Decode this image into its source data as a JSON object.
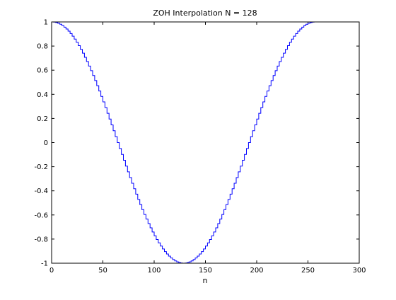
{
  "chart_data": {
    "type": "line",
    "title": "ZOH Interpolation N = 128",
    "xlabel": "n",
    "ylabel": "",
    "xlim": [
      0,
      300
    ],
    "ylim": [
      -1,
      1
    ],
    "xticks": [
      0,
      50,
      100,
      150,
      200,
      250,
      300
    ],
    "yticks": [
      -1,
      -0.8,
      -0.6,
      -0.4,
      -0.2,
      0,
      0.2,
      0.4,
      0.6,
      0.8,
      1
    ],
    "xtick_labels": [
      "0",
      "50",
      "100",
      "150",
      "200",
      "250",
      "300"
    ],
    "ytick_labels": [
      "-1",
      "-0.8",
      "-0.6",
      "-0.4",
      "-0.2",
      "0",
      "0.2",
      "0.4",
      "0.6",
      "0.8",
      "1"
    ],
    "grid": false,
    "line_color": "#0000ff",
    "series": [
      {
        "style": "stairs",
        "x": [
          0,
          2,
          4,
          6,
          8,
          10,
          12,
          14,
          16,
          18,
          20,
          22,
          24,
          26,
          28,
          30,
          32,
          34,
          36,
          38,
          40,
          42,
          44,
          46,
          48,
          50,
          52,
          54,
          56,
          58,
          60,
          62,
          64,
          66,
          68,
          70,
          72,
          74,
          76,
          78,
          80,
          82,
          84,
          86,
          88,
          90,
          92,
          94,
          96,
          98,
          100,
          102,
          104,
          106,
          108,
          110,
          112,
          114,
          116,
          118,
          120,
          122,
          124,
          126,
          128,
          130,
          132,
          134,
          136,
          138,
          140,
          142,
          144,
          146,
          148,
          150,
          152,
          154,
          156,
          158,
          160,
          162,
          164,
          166,
          168,
          170,
          172,
          174,
          176,
          178,
          180,
          182,
          184,
          186,
          188,
          190,
          192,
          194,
          196,
          198,
          200,
          202,
          204,
          206,
          208,
          210,
          212,
          214,
          216,
          218,
          220,
          222,
          224,
          226,
          228,
          230,
          232,
          234,
          236,
          238,
          240,
          242,
          244,
          246,
          248,
          250,
          252,
          254,
          256
        ],
        "values": [
          1.0,
          0.9988,
          0.9952,
          0.9892,
          0.9808,
          0.97,
          0.9569,
          0.9415,
          0.9239,
          0.904,
          0.8819,
          0.8577,
          0.8315,
          0.8032,
          0.773,
          0.741,
          0.7071,
          0.6716,
          0.6344,
          0.5957,
          0.5556,
          0.5141,
          0.4714,
          0.4276,
          0.3827,
          0.3369,
          0.2903,
          0.243,
          0.1951,
          0.1467,
          0.098,
          0.0491,
          0.0,
          -0.0491,
          -0.098,
          -0.1467,
          -0.1951,
          -0.243,
          -0.2903,
          -0.3369,
          -0.3827,
          -0.4276,
          -0.4714,
          -0.5141,
          -0.5556,
          -0.5957,
          -0.6344,
          -0.6716,
          -0.7071,
          -0.741,
          -0.773,
          -0.8032,
          -0.8315,
          -0.8577,
          -0.8819,
          -0.904,
          -0.9239,
          -0.9415,
          -0.9569,
          -0.97,
          -0.9808,
          -0.9892,
          -0.9952,
          -0.9988,
          -1.0,
          -0.9988,
          -0.9952,
          -0.9892,
          -0.9808,
          -0.97,
          -0.9569,
          -0.9415,
          -0.9239,
          -0.904,
          -0.8819,
          -0.8577,
          -0.8315,
          -0.8032,
          -0.773,
          -0.741,
          -0.7071,
          -0.6716,
          -0.6344,
          -0.5957,
          -0.5556,
          -0.5141,
          -0.4714,
          -0.4276,
          -0.3827,
          -0.3369,
          -0.2903,
          -0.243,
          -0.1951,
          -0.1467,
          -0.098,
          -0.0491,
          0.0,
          0.0491,
          0.098,
          0.1467,
          0.1951,
          0.243,
          0.2903,
          0.3369,
          0.3827,
          0.4276,
          0.4714,
          0.5141,
          0.5556,
          0.5957,
          0.6344,
          0.6716,
          0.7071,
          0.741,
          0.773,
          0.8032,
          0.8315,
          0.8577,
          0.8819,
          0.904,
          0.9239,
          0.9415,
          0.9569,
          0.97,
          0.9808,
          0.9892,
          0.9952,
          0.9988,
          1.0
        ]
      }
    ]
  }
}
